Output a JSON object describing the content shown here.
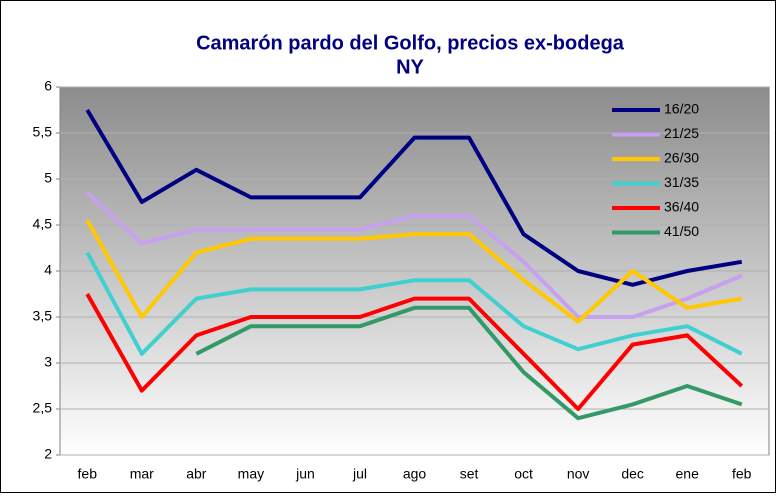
{
  "chart_data": {
    "type": "line",
    "title": [
      "Camarón pardo del Golfo, precios ex-bodega",
      "NY"
    ],
    "categories": [
      "feb",
      "mar",
      "abr",
      "may",
      "jun",
      "jul",
      "ago",
      "set",
      "oct",
      "nov",
      "dec",
      "ene",
      "feb"
    ],
    "series": [
      {
        "name": "16/20",
        "color": "#000080",
        "values": [
          5.75,
          4.75,
          5.1,
          4.8,
          4.8,
          4.8,
          5.45,
          5.45,
          4.4,
          4.0,
          3.85,
          4.0,
          4.1
        ]
      },
      {
        "name": "21/25",
        "color": "#c8a0f0",
        "values": [
          4.85,
          4.3,
          4.45,
          4.45,
          4.45,
          4.45,
          4.6,
          4.6,
          4.1,
          3.5,
          3.5,
          3.7,
          3.95
        ]
      },
      {
        "name": "26/30",
        "color": "#ffc800",
        "values": [
          4.55,
          3.5,
          4.2,
          4.35,
          4.35,
          4.35,
          4.4,
          4.4,
          3.9,
          3.45,
          4.0,
          3.6,
          3.7
        ]
      },
      {
        "name": "31/35",
        "color": "#40d0d0",
        "values": [
          4.2,
          3.1,
          3.7,
          3.8,
          3.8,
          3.8,
          3.9,
          3.9,
          3.4,
          3.15,
          3.3,
          3.4,
          3.1
        ]
      },
      {
        "name": "36/40",
        "color": "#ff0000",
        "values": [
          3.75,
          2.7,
          3.3,
          3.5,
          3.5,
          3.5,
          3.7,
          3.7,
          3.1,
          2.5,
          3.2,
          3.3,
          2.75
        ]
      },
      {
        "name": "41/50",
        "color": "#339966",
        "values": [
          null,
          null,
          3.1,
          3.4,
          3.4,
          3.4,
          3.6,
          3.6,
          2.9,
          2.4,
          2.55,
          2.75,
          2.55
        ]
      }
    ],
    "ylim": [
      2,
      6
    ],
    "yticks": [
      2,
      {
        "value": 2.5,
        "label": "2,5"
      },
      3,
      {
        "value": 3.5,
        "label": "3,5"
      },
      4,
      {
        "value": 4.5,
        "label": "4,5"
      },
      5,
      {
        "value": 5.5,
        "label": "5,5"
      },
      6
    ],
    "grid": true,
    "legend": "upper right"
  }
}
